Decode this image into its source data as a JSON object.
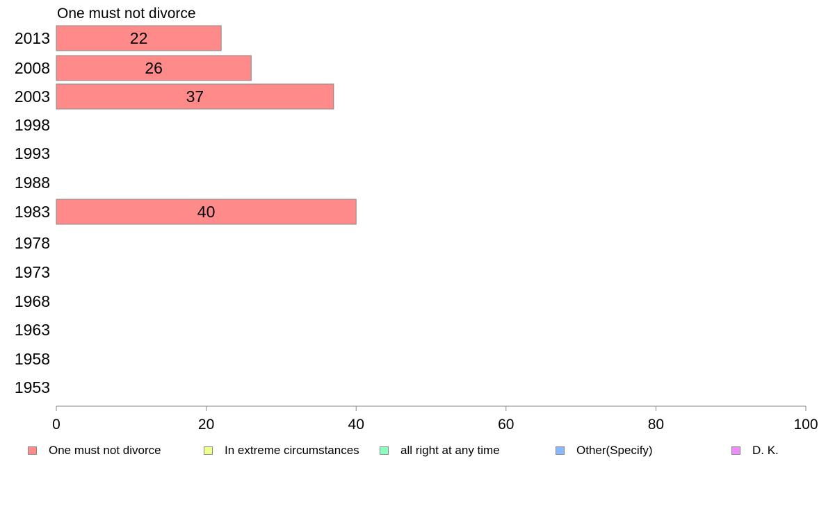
{
  "chart_data": {
    "type": "bar",
    "orientation": "horizontal",
    "subtitle": "One must not divorce",
    "categories": [
      "2013",
      "2008",
      "2003",
      "1998",
      "1993",
      "1988",
      "1983",
      "1978",
      "1973",
      "1968",
      "1963",
      "1958",
      "1953"
    ],
    "series": [
      {
        "name": "One must not divorce",
        "color": "#ff8a8a",
        "values": [
          22,
          26,
          37,
          null,
          null,
          null,
          40,
          null,
          null,
          null,
          null,
          null,
          null
        ],
        "labels": [
          "22",
          "26",
          "37",
          "",
          "",
          "",
          "40",
          "",
          "",
          "",
          "",
          "",
          ""
        ]
      }
    ],
    "xlim": [
      0,
      100
    ],
    "xticks": [
      "0",
      "20",
      "40",
      "60",
      "80",
      "100"
    ],
    "grid": false,
    "legend_position": "bottom"
  },
  "legend": [
    {
      "label": "One must not divorce",
      "color": "#ff8a8a"
    },
    {
      "label": "In extreme circumstances",
      "color": "#eeff8a"
    },
    {
      "label": "all right at any time",
      "color": "#8affbe"
    },
    {
      "label": "Other(Specify)",
      "color": "#8ab8ff"
    },
    {
      "label": "D. K.",
      "color": "#f08aff"
    }
  ]
}
